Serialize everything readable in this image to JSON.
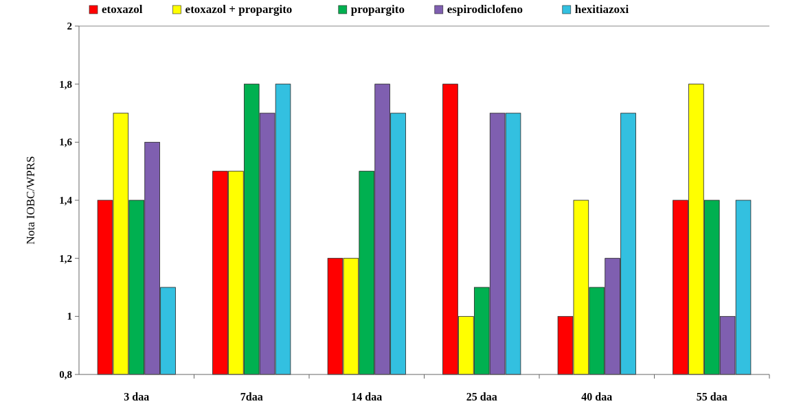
{
  "chart_data": {
    "type": "bar",
    "ylabel": "Nota IOBC/WPRS",
    "categories": [
      "3 daa",
      "7daa",
      "14 daa",
      "25 daa",
      "40 daa",
      "55 daa"
    ],
    "series": [
      {
        "name": "etoxazol",
        "color": "#ff0000",
        "values": [
          1.4,
          1.5,
          1.2,
          1.8,
          1.0,
          1.4
        ]
      },
      {
        "name": "etoxazol + propargito",
        "color": "#ffff00",
        "values": [
          1.7,
          1.5,
          1.2,
          1.0,
          1.4,
          1.8
        ]
      },
      {
        "name": "propargito",
        "color": "#00b050",
        "values": [
          1.4,
          1.8,
          1.5,
          1.1,
          1.1,
          1.4
        ]
      },
      {
        "name": "espirodiclofeno",
        "color": "#7f5fb0",
        "values": [
          1.6,
          1.7,
          1.8,
          1.7,
          1.2,
          1.0
        ]
      },
      {
        "name": "hexitiazoxi",
        "color": "#33c0e0",
        "values": [
          1.1,
          1.8,
          1.7,
          1.7,
          1.7,
          1.4
        ]
      }
    ],
    "ylim": [
      0.8,
      2
    ],
    "yticks": [
      {
        "value": 0.8,
        "label": "0,8"
      },
      1,
      {
        "value": 1.2,
        "label": "1,2"
      },
      {
        "value": 1.4,
        "label": "1,4"
      },
      {
        "value": 1.6,
        "label": "1,6"
      },
      {
        "value": 1.8,
        "label": "1,8"
      },
      2
    ],
    "legend": "top",
    "grid": false
  }
}
